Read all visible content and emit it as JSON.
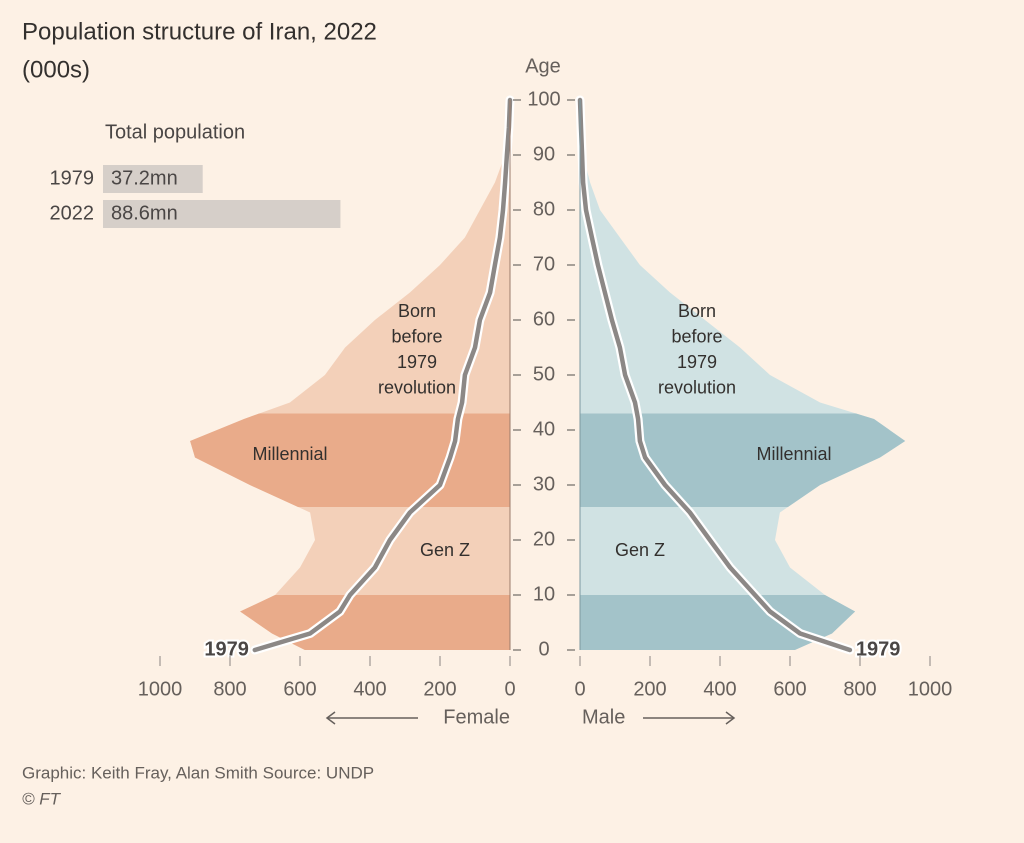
{
  "chart_data": [
    {
      "type": "pyramid",
      "title": "Population structure of Iran, 2022",
      "subtitle": "(000s)",
      "ylabel": "Age",
      "xlabel_left": "Female",
      "xlabel_right": "Male",
      "x": [
        0,
        3,
        7,
        10,
        15,
        20,
        25,
        30,
        35,
        38,
        42,
        45,
        50,
        55,
        60,
        65,
        70,
        75,
        80,
        85,
        90,
        95,
        100
      ],
      "ylim": [
        0,
        100
      ],
      "yticks": [
        0,
        10,
        20,
        30,
        40,
        50,
        60,
        70,
        80,
        90,
        100
      ],
      "xlim": [
        0,
        1000
      ],
      "xticks": [
        0,
        200,
        400,
        600,
        800,
        1000
      ],
      "band_edges": [
        10,
        26,
        43
      ],
      "series": [
        {
          "side": "female",
          "color": "#f3d0b9",
          "color_dark": "#e9ab8a",
          "values": [
            586,
            680,
            771,
            671,
            600,
            557,
            571,
            743,
            900,
            914,
            760,
            629,
            529,
            471,
            386,
            286,
            200,
            129,
            86,
            43,
            14,
            2,
            0
          ]
        },
        {
          "side": "male",
          "color": "#d0e2e3",
          "color_dark": "#a3c3c9",
          "values": [
            614,
            720,
            786,
            700,
            600,
            557,
            571,
            686,
            857,
            929,
            840,
            686,
            543,
            457,
            357,
            257,
            171,
            114,
            57,
            29,
            9,
            1,
            0
          ]
        },
        {
          "name": "1979",
          "side": "female",
          "color": "#8c8886",
          "values": [
            729,
            571,
            486,
            457,
            386,
            343,
            286,
            200,
            171,
            157,
            149,
            137,
            129,
            100,
            86,
            57,
            43,
            29,
            20,
            14,
            9,
            3,
            0
          ]
        },
        {
          "name": "1979",
          "side": "male",
          "color": "#8c8886",
          "values": [
            771,
            629,
            543,
            500,
            429,
            371,
            314,
            243,
            186,
            171,
            166,
            157,
            129,
            114,
            91,
            71,
            51,
            34,
            17,
            9,
            6,
            3,
            0
          ]
        }
      ],
      "annotations": [
        {
          "lines": [
            "Born",
            "before",
            "1979",
            "revolution"
          ]
        },
        {
          "lines": [
            "Millennial"
          ]
        },
        {
          "lines": [
            "Gen Z"
          ]
        }
      ]
    },
    {
      "type": "bar",
      "title": "Total population",
      "categories": [
        "1979",
        "2022"
      ],
      "values": [
        37.2,
        88.6
      ],
      "value_labels": [
        "37.2mn",
        "88.6mn"
      ],
      "color": "#d6cfc9"
    }
  ],
  "footer": {
    "credit": "Graphic: Keith Fray, Alan Smith   Source: UNDP",
    "copyright": "© FT"
  }
}
